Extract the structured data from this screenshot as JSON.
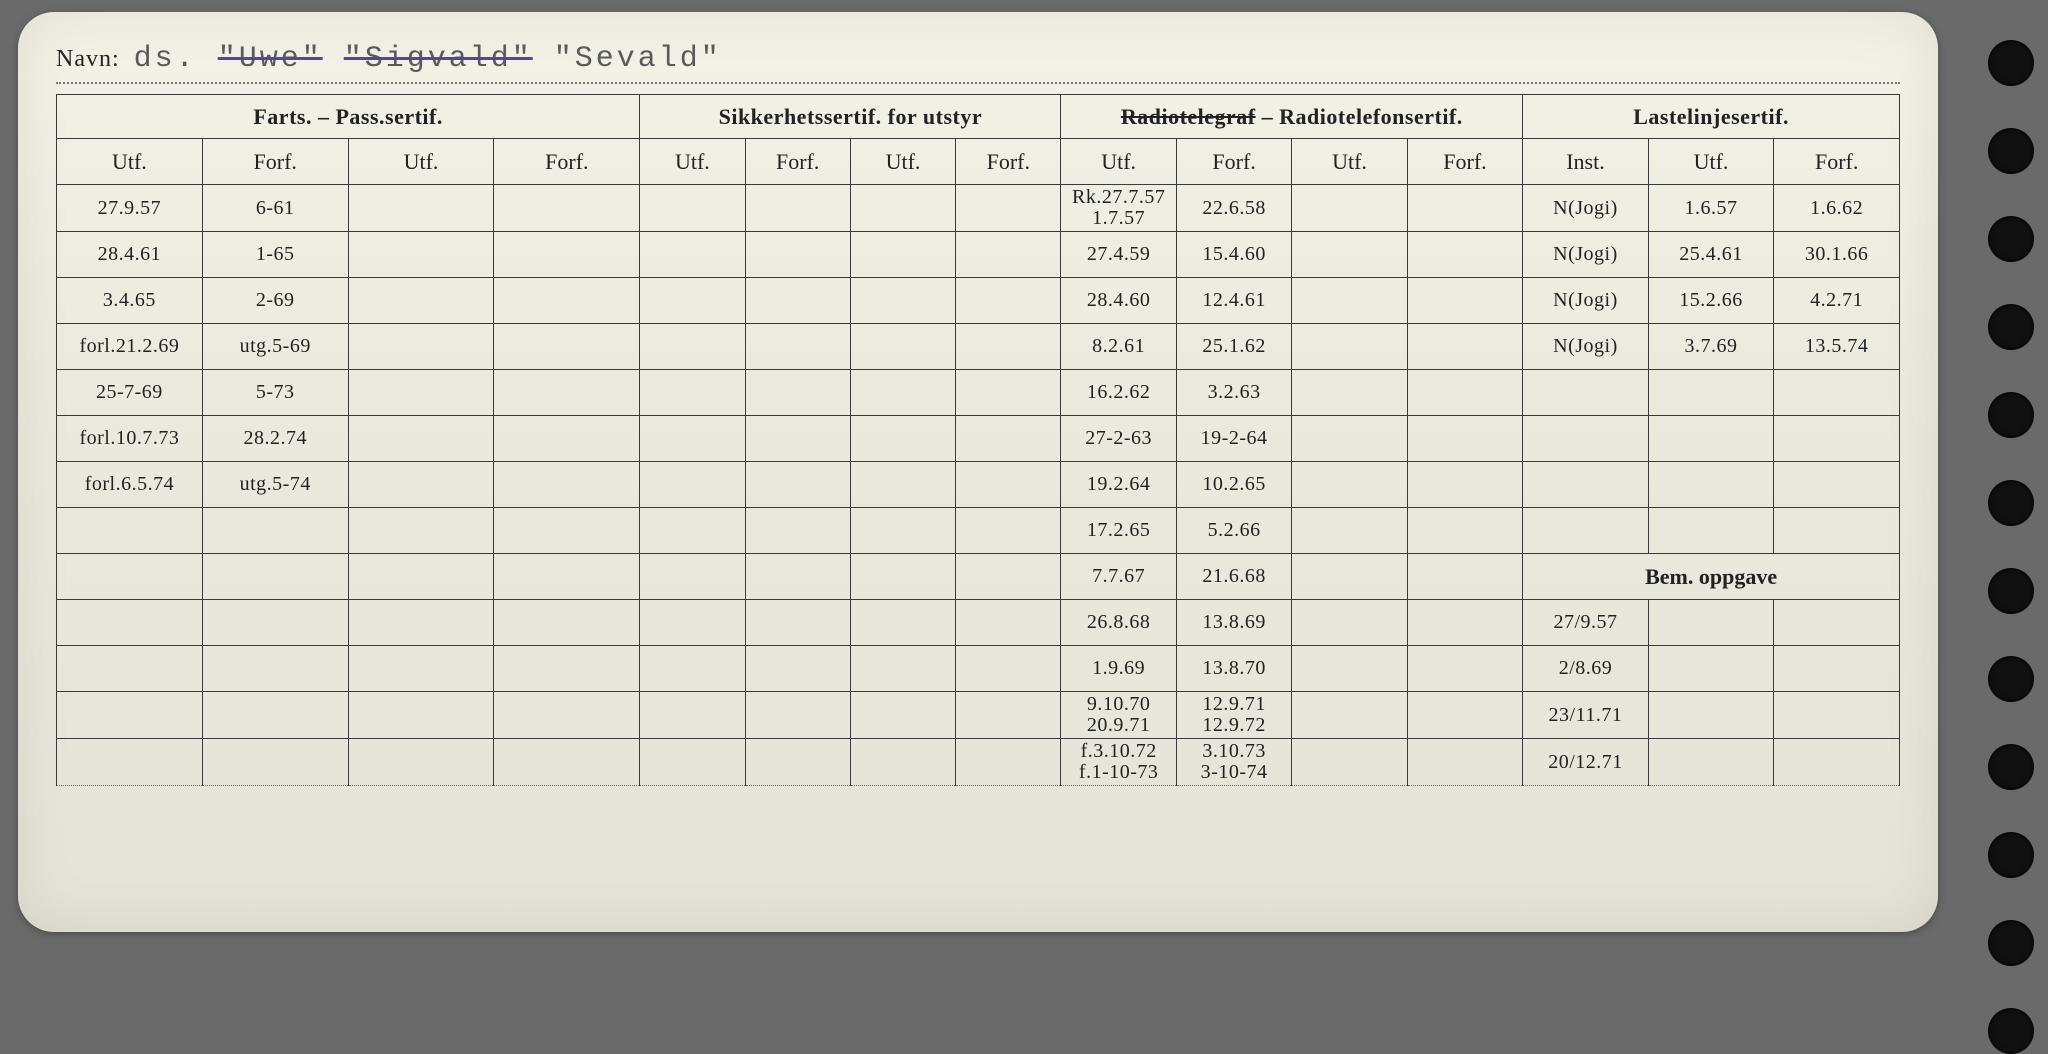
{
  "navn_label": "Navn:",
  "navn_value_parts": [
    {
      "text": "ds.",
      "strike": false
    },
    {
      "text": "\"Uwe\"",
      "strike": true
    },
    {
      "text": "\"Sigvald\"",
      "strike": true
    },
    {
      "text": "\"Sevald\"",
      "strike": false
    }
  ],
  "groups": {
    "farts": "Farts. – Pass.sertif.",
    "sikkerhet": "Sikkerhetssertif. for utstyr",
    "radio_pre": "Radiotelegraf",
    "radio_post": " – Radiotelefonsertif.",
    "laste": "Lastelinjesertif.",
    "bem": "Bem. oppgave"
  },
  "subheads": {
    "utf": "Utf.",
    "forf": "Forf.",
    "inst": "Inst."
  },
  "rows": [
    {
      "f1": "27.9.57",
      "f2": "6-61",
      "f3": "",
      "f4": "",
      "s1": "",
      "s2": "",
      "s3": "",
      "s4": "",
      "r1": "Rk.27.7.57\n1.7.57",
      "r2": "22.6.58",
      "r3": "",
      "r4": "",
      "l1": "N(Jogi)",
      "l2": "1.6.57",
      "l3": "1.6.62"
    },
    {
      "f1": "28.4.61",
      "f2": "1-65",
      "f3": "",
      "f4": "",
      "s1": "",
      "s2": "",
      "s3": "",
      "s4": "",
      "r1": "27.4.59",
      "r2": "15.4.60",
      "r3": "",
      "r4": "",
      "l1": "N(Jogi)",
      "l2": "25.4.61",
      "l3": "30.1.66"
    },
    {
      "f1": "3.4.65",
      "f2": "2-69",
      "f3": "",
      "f4": "",
      "s1": "",
      "s2": "",
      "s3": "",
      "s4": "",
      "r1": "28.4.60",
      "r2": "12.4.61",
      "r3": "",
      "r4": "",
      "l1": "N(Jogi)",
      "l2": "15.2.66",
      "l3": "4.2.71"
    },
    {
      "f1": "forl.21.2.69",
      "f2": "utg.5-69",
      "f3": "",
      "f4": "",
      "s1": "",
      "s2": "",
      "s3": "",
      "s4": "",
      "r1": "8.2.61",
      "r2": "25.1.62",
      "r3": "",
      "r4": "",
      "l1": "N(Jogi)",
      "l2": "3.7.69",
      "l3": "13.5.74"
    },
    {
      "f1": "25-7-69",
      "f2": "5-73",
      "f3": "",
      "f4": "",
      "s1": "",
      "s2": "",
      "s3": "",
      "s4": "",
      "r1": "16.2.62",
      "r2": "3.2.63",
      "r3": "",
      "r4": "",
      "l1": "",
      "l2": "",
      "l3": ""
    },
    {
      "f1": "forl.10.7.73",
      "f2": "28.2.74",
      "f3": "",
      "f4": "",
      "s1": "",
      "s2": "",
      "s3": "",
      "s4": "",
      "r1": "27-2-63",
      "r2": "19-2-64",
      "r3": "",
      "r4": "",
      "l1": "",
      "l2": "",
      "l3": ""
    },
    {
      "f1": "forl.6.5.74",
      "f2": "utg.5-74",
      "f3": "",
      "f4": "",
      "s1": "",
      "s2": "",
      "s3": "",
      "s4": "",
      "r1": "19.2.64",
      "r2": "10.2.65",
      "r3": "",
      "r4": "",
      "l1": "",
      "l2": "",
      "l3": ""
    },
    {
      "f1": "",
      "f2": "",
      "f3": "",
      "f4": "",
      "s1": "",
      "s2": "",
      "s3": "",
      "s4": "",
      "r1": "17.2.65",
      "r2": "5.2.66",
      "r3": "",
      "r4": "",
      "l1": "",
      "l2": "",
      "l3": ""
    },
    {
      "f1": "",
      "f2": "",
      "f3": "",
      "f4": "",
      "s1": "",
      "s2": "",
      "s3": "",
      "s4": "",
      "r1": "7.7.67",
      "r2": "21.6.68",
      "r3": "",
      "r4": "",
      "bem1": "",
      "bem2": "",
      "bem3": ""
    },
    {
      "f1": "",
      "f2": "",
      "f3": "",
      "f4": "",
      "s1": "",
      "s2": "",
      "s3": "",
      "s4": "",
      "r1": "26.8.68",
      "r2": "13.8.69",
      "r3": "",
      "r4": "",
      "bem1": "27/9.57",
      "bem2": "",
      "bem3": ""
    },
    {
      "f1": "",
      "f2": "",
      "f3": "",
      "f4": "",
      "s1": "",
      "s2": "",
      "s3": "",
      "s4": "",
      "r1": "1.9.69",
      "r2": "13.8.70",
      "r3": "",
      "r4": "",
      "bem1": "2/8.69",
      "bem2": "",
      "bem3": ""
    },
    {
      "f1": "",
      "f2": "",
      "f3": "",
      "f4": "",
      "s1": "",
      "s2": "",
      "s3": "",
      "s4": "",
      "r1": "9.10.70\n20.9.71",
      "r2": "12.9.71\n12.9.72",
      "r3": "",
      "r4": "",
      "bem1": "23/11.71",
      "bem2": "",
      "bem3": ""
    },
    {
      "f1": "",
      "f2": "",
      "f3": "",
      "f4": "",
      "s1": "",
      "s2": "",
      "s3": "",
      "s4": "",
      "r1": "f.3.10.72\nf.1-10-73",
      "r2": "3.10.73\n3-10-74",
      "r3": "",
      "r4": "",
      "bem1": "20/12.71",
      "bem2": "",
      "bem3": ""
    }
  ],
  "colors": {
    "card_bg": "#eceade",
    "ink": "#3a3a7a",
    "border": "#3a3a3a",
    "page_bg": "#6a6a6a"
  },
  "bem_header_row_index": 8,
  "punch_count": 12
}
